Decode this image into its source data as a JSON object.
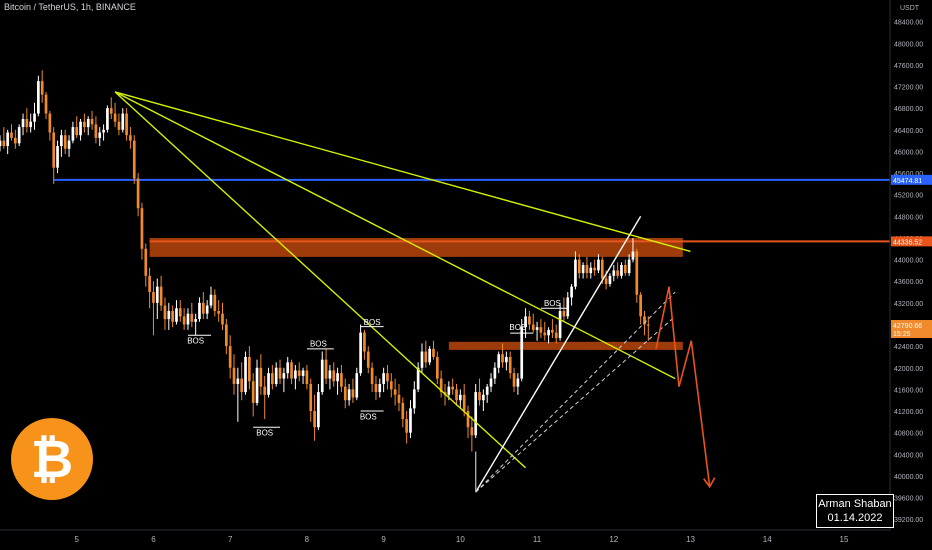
{
  "title": "Bitcoin / TetherUS, 1h, BINANCE",
  "author": {
    "name": "Arman Shaban",
    "date": "01.14.2022"
  },
  "colors": {
    "background": "#000000",
    "up": "#ffffff",
    "down": "#f08a2c",
    "trendline": "#d4f000",
    "zone": "#b8460c",
    "hline_blue": "#2962ff",
    "hline_red": "#e8541b",
    "projection": "#e8541b",
    "axis_text": "#b2b5be"
  },
  "chart_data": {
    "type": "candlestick",
    "symbol": "BTCUSDT",
    "timeframe": "1h",
    "exchange": "BINANCE",
    "y_axis": {
      "unit": "USDT",
      "ticks": [
        39200,
        39600,
        40000,
        40400,
        40800,
        41200,
        41600,
        42000,
        42400,
        42800,
        43200,
        43600,
        44000,
        44400,
        44800,
        45200,
        45600,
        46000,
        46400,
        46800,
        47200,
        47600,
        48000,
        48400
      ],
      "range": [
        39000,
        48800
      ]
    },
    "x_axis": {
      "ticks": [
        "5",
        "6",
        "7",
        "8",
        "9",
        "10",
        "11",
        "12",
        "13",
        "14",
        "15"
      ],
      "range": [
        4.0,
        15.6
      ]
    },
    "price_labels": [
      {
        "value": "45474.81",
        "price": 45474.81,
        "color": "#2962ff"
      },
      {
        "value": "44336.52",
        "price": 44336.52,
        "color": "#e8541b"
      },
      {
        "value": "42790.66",
        "price": 42790.66,
        "color": "#f08a2c",
        "countdown": "15:25"
      }
    ],
    "candles": [
      [
        4.0,
        46100,
        46300,
        46000,
        46200
      ],
      [
        4.05,
        46200,
        46450,
        46050,
        46100
      ],
      [
        4.1,
        46100,
        46400,
        45950,
        46350
      ],
      [
        4.15,
        46350,
        46500,
        46200,
        46250
      ],
      [
        4.2,
        46250,
        46400,
        46050,
        46150
      ],
      [
        4.25,
        46150,
        46500,
        46100,
        46450
      ],
      [
        4.3,
        46450,
        46700,
        46300,
        46600
      ],
      [
        4.35,
        46600,
        46800,
        46350,
        46450
      ],
      [
        4.4,
        46450,
        46700,
        46350,
        46550
      ],
      [
        4.45,
        46550,
        46900,
        46400,
        46700
      ],
      [
        4.5,
        46700,
        47400,
        46650,
        47300
      ],
      [
        4.55,
        47300,
        47500,
        46900,
        47050
      ],
      [
        4.6,
        47050,
        47100,
        46600,
        46700
      ],
      [
        4.65,
        46700,
        46750,
        46200,
        46350
      ],
      [
        4.7,
        46350,
        46450,
        45400,
        45700
      ],
      [
        4.75,
        45700,
        46200,
        45600,
        46100
      ],
      [
        4.8,
        46100,
        46400,
        45900,
        46300
      ],
      [
        4.85,
        46300,
        46400,
        45950,
        46050
      ],
      [
        4.9,
        46050,
        46300,
        45900,
        46200
      ],
      [
        4.95,
        46200,
        46550,
        46150,
        46450
      ],
      [
        5.0,
        46450,
        46650,
        46250,
        46300
      ],
      [
        5.05,
        46300,
        46600,
        46200,
        46550
      ],
      [
        5.1,
        46550,
        46700,
        46350,
        46450
      ],
      [
        5.15,
        46450,
        46650,
        46300,
        46600
      ],
      [
        5.2,
        46600,
        46750,
        46400,
        46500
      ],
      [
        5.25,
        46500,
        46650,
        46150,
        46250
      ],
      [
        5.3,
        46250,
        46450,
        46100,
        46350
      ],
      [
        5.35,
        46350,
        46500,
        46200,
        46400
      ],
      [
        5.4,
        46400,
        46850,
        46350,
        46800
      ],
      [
        5.45,
        46800,
        47000,
        46600,
        46700
      ],
      [
        5.5,
        46700,
        46900,
        46450,
        46550
      ],
      [
        5.55,
        46550,
        46700,
        46300,
        46400
      ],
      [
        5.6,
        46400,
        46800,
        46350,
        46700
      ],
      [
        5.65,
        46700,
        46800,
        46200,
        46300
      ],
      [
        5.7,
        46300,
        46450,
        46050,
        46200
      ],
      [
        5.75,
        46200,
        46300,
        45400,
        45500
      ],
      [
        5.8,
        45500,
        45600,
        44800,
        44950
      ],
      [
        5.85,
        44950,
        45050,
        44000,
        44200
      ],
      [
        5.9,
        44200,
        44300,
        43500,
        43700
      ],
      [
        5.95,
        43700,
        43850,
        43100,
        43400
      ],
      [
        6.0,
        43400,
        43600,
        42600,
        43200
      ],
      [
        6.05,
        43200,
        43650,
        42900,
        43500
      ],
      [
        6.1,
        43500,
        43700,
        43050,
        43150
      ],
      [
        6.15,
        43150,
        43300,
        42700,
        42900
      ],
      [
        6.2,
        42900,
        43200,
        42700,
        43050
      ],
      [
        6.25,
        43050,
        43150,
        42750,
        42850
      ],
      [
        6.3,
        42850,
        43250,
        42800,
        43100
      ],
      [
        6.35,
        43100,
        43250,
        42850,
        42950
      ],
      [
        6.4,
        42950,
        43100,
        42700,
        42800
      ],
      [
        6.45,
        42800,
        43100,
        42700,
        43000
      ],
      [
        6.5,
        43000,
        43200,
        42750,
        42850
      ],
      [
        6.55,
        42850,
        43000,
        42600,
        42900
      ],
      [
        6.6,
        42900,
        43300,
        42850,
        43200
      ],
      [
        6.65,
        43200,
        43400,
        42900,
        43000
      ],
      [
        6.7,
        43000,
        43250,
        42900,
        43150
      ],
      [
        6.75,
        43150,
        43500,
        43100,
        43350
      ],
      [
        6.8,
        43350,
        43450,
        42950,
        43050
      ],
      [
        6.85,
        43050,
        43250,
        42850,
        43000
      ],
      [
        6.9,
        43000,
        43200,
        42700,
        42800
      ],
      [
        6.95,
        42800,
        42900,
        42250,
        42400
      ],
      [
        7.0,
        42400,
        42600,
        41800,
        42000
      ],
      [
        7.05,
        42000,
        42250,
        41500,
        41700
      ],
      [
        7.1,
        41700,
        42000,
        41000,
        41800
      ],
      [
        7.15,
        41800,
        42100,
        41400,
        41550
      ],
      [
        7.2,
        41550,
        42300,
        41500,
        42200
      ],
      [
        7.25,
        42200,
        42400,
        41600,
        41750
      ],
      [
        7.3,
        41750,
        41900,
        41100,
        41350
      ],
      [
        7.35,
        41350,
        42150,
        41300,
        42000
      ],
      [
        7.4,
        42000,
        42250,
        41500,
        41650
      ],
      [
        7.45,
        41650,
        41850,
        41050,
        41500
      ],
      [
        7.5,
        41500,
        42000,
        41450,
        41900
      ],
      [
        7.55,
        41900,
        42050,
        41600,
        41700
      ],
      [
        7.6,
        41700,
        42100,
        41650,
        42000
      ],
      [
        7.65,
        42000,
        42150,
        41700,
        41800
      ],
      [
        7.7,
        41800,
        42000,
        41550,
        41900
      ],
      [
        7.75,
        41900,
        42200,
        41800,
        42100
      ],
      [
        7.8,
        42100,
        42150,
        41700,
        41800
      ],
      [
        7.85,
        41800,
        42050,
        41600,
        41950
      ],
      [
        7.9,
        41950,
        42100,
        41750,
        41850
      ],
      [
        7.95,
        41850,
        42000,
        41700,
        41950
      ],
      [
        8.0,
        41950,
        42050,
        41600,
        41700
      ],
      [
        8.05,
        41700,
        41800,
        41000,
        41200
      ],
      [
        8.1,
        41200,
        41500,
        40650,
        40900
      ],
      [
        8.15,
        40900,
        41700,
        40850,
        41550
      ],
      [
        8.2,
        41550,
        42300,
        41500,
        42150
      ],
      [
        8.25,
        42150,
        42350,
        41700,
        41800
      ],
      [
        8.3,
        41800,
        42050,
        41600,
        41950
      ],
      [
        8.35,
        41950,
        42100,
        41650,
        41750
      ],
      [
        8.4,
        41750,
        42000,
        41500,
        41900
      ],
      [
        8.45,
        41900,
        42050,
        41550,
        41650
      ],
      [
        8.5,
        41650,
        41800,
        41250,
        41400
      ],
      [
        8.55,
        41400,
        41700,
        41300,
        41600
      ],
      [
        8.6,
        41600,
        41800,
        41350,
        41450
      ],
      [
        8.65,
        41450,
        42000,
        41400,
        41900
      ],
      [
        8.7,
        41900,
        42800,
        41850,
        42650
      ],
      [
        8.75,
        42650,
        42700,
        42150,
        42300
      ],
      [
        8.8,
        42300,
        42400,
        41900,
        42000
      ],
      [
        8.85,
        42000,
        42100,
        41550,
        41700
      ],
      [
        8.9,
        41700,
        41850,
        41400,
        41550
      ],
      [
        8.95,
        41550,
        41800,
        41450,
        41700
      ],
      [
        9.0,
        41700,
        42000,
        41550,
        41900
      ],
      [
        9.05,
        41900,
        42050,
        41600,
        41750
      ],
      [
        9.1,
        41750,
        41900,
        41450,
        41600
      ],
      [
        9.15,
        41600,
        41800,
        41300,
        41500
      ],
      [
        9.2,
        41500,
        41700,
        41200,
        41350
      ],
      [
        9.25,
        41350,
        41450,
        40900,
        41050
      ],
      [
        9.3,
        41050,
        41200,
        40600,
        40800
      ],
      [
        9.35,
        40800,
        41400,
        40700,
        41250
      ],
      [
        9.4,
        41250,
        41750,
        41150,
        41600
      ],
      [
        9.45,
        41600,
        42100,
        41550,
        42000
      ],
      [
        9.5,
        42000,
        42450,
        41900,
        42300
      ],
      [
        9.55,
        42300,
        42500,
        42000,
        42100
      ],
      [
        9.6,
        42100,
        42400,
        42050,
        42350
      ],
      [
        9.65,
        42350,
        42500,
        42150,
        42200
      ],
      [
        9.7,
        42200,
        42300,
        41700,
        41800
      ],
      [
        9.75,
        41800,
        41950,
        41450,
        41550
      ],
      [
        9.8,
        41550,
        41700,
        41300,
        41500
      ],
      [
        9.85,
        41500,
        41750,
        41400,
        41650
      ],
      [
        9.9,
        41650,
        41800,
        41500,
        41600
      ],
      [
        9.95,
        41600,
        41700,
        41300,
        41400
      ],
      [
        10.0,
        41400,
        41600,
        41250,
        41500
      ],
      [
        10.05,
        41500,
        41700,
        41100,
        41200
      ],
      [
        10.1,
        41200,
        41300,
        40700,
        40900
      ],
      [
        10.15,
        40900,
        41100,
        40450,
        40750
      ],
      [
        10.2,
        40750,
        41700,
        40700,
        41550
      ],
      [
        10.25,
        41550,
        41800,
        41300,
        41400
      ],
      [
        10.3,
        41400,
        41600,
        41200,
        41500
      ],
      [
        10.35,
        41500,
        41700,
        41350,
        41650
      ],
      [
        10.4,
        41650,
        41900,
        41550,
        41800
      ],
      [
        10.45,
        41800,
        42100,
        41700,
        42000
      ],
      [
        10.5,
        42000,
        42300,
        41900,
        42250
      ],
      [
        10.55,
        42250,
        42450,
        42000,
        42100
      ],
      [
        10.6,
        42100,
        42300,
        41950,
        42200
      ],
      [
        10.65,
        42200,
        42300,
        41800,
        41900
      ],
      [
        10.7,
        41900,
        42000,
        41550,
        41650
      ],
      [
        10.75,
        41650,
        41900,
        41500,
        41800
      ],
      [
        10.8,
        41800,
        42900,
        41750,
        42750
      ],
      [
        10.85,
        42750,
        43100,
        42550,
        42950
      ],
      [
        10.9,
        42950,
        43050,
        42700,
        42800
      ],
      [
        10.95,
        42800,
        43000,
        42650,
        42700
      ],
      [
        11.0,
        42700,
        42850,
        42500,
        42750
      ],
      [
        11.05,
        42750,
        42900,
        42550,
        42650
      ],
      [
        11.1,
        42650,
        42850,
        42500,
        42600
      ],
      [
        11.15,
        42600,
        42750,
        42450,
        42700
      ],
      [
        11.2,
        42700,
        42900,
        42550,
        42650
      ],
      [
        11.25,
        42650,
        42800,
        42450,
        42550
      ],
      [
        11.3,
        42550,
        43200,
        42500,
        43050
      ],
      [
        11.35,
        43050,
        43300,
        42850,
        42950
      ],
      [
        11.4,
        42950,
        43400,
        42900,
        43300
      ],
      [
        11.45,
        43300,
        43550,
        43150,
        43500
      ],
      [
        11.5,
        43500,
        44150,
        43450,
        44000
      ],
      [
        11.55,
        44000,
        44100,
        43650,
        43750
      ],
      [
        11.6,
        43750,
        43950,
        43650,
        43900
      ],
      [
        11.65,
        43900,
        44050,
        43650,
        43750
      ],
      [
        11.7,
        43750,
        43950,
        43650,
        43850
      ],
      [
        11.75,
        43850,
        44000,
        43700,
        43800
      ],
      [
        11.8,
        43800,
        44100,
        43750,
        44000
      ],
      [
        11.85,
        44000,
        44050,
        43550,
        43650
      ],
      [
        11.9,
        43650,
        43800,
        43450,
        43550
      ],
      [
        11.95,
        43550,
        43750,
        43500,
        43700
      ],
      [
        12.0,
        43700,
        43900,
        43600,
        43800
      ],
      [
        12.05,
        43800,
        43950,
        43650,
        43700
      ],
      [
        12.1,
        43700,
        43950,
        43650,
        43900
      ],
      [
        12.15,
        43900,
        44000,
        43700,
        43750
      ],
      [
        12.2,
        43750,
        44100,
        43700,
        44000
      ],
      [
        12.25,
        44000,
        44400,
        43950,
        44150
      ],
      [
        12.3,
        44150,
        44200,
        43200,
        43350
      ],
      [
        12.35,
        43350,
        43400,
        42800,
        42950
      ],
      [
        12.4,
        42950,
        43050,
        42600,
        42800
      ],
      [
        12.45,
        42800,
        42950,
        42500,
        42790
      ]
    ],
    "horizontal_lines": [
      {
        "price": 45474.81,
        "color": "#2962ff",
        "from_x": 4.7
      },
      {
        "price": 44336.52,
        "color": "#e8541b",
        "from_x": 5.95
      }
    ],
    "zones": [
      {
        "x1": 5.95,
        "x2": 12.9,
        "y1": 44050,
        "y2": 44400
      },
      {
        "x1": 9.85,
        "x2": 12.9,
        "y1": 42330,
        "y2": 42480
      }
    ],
    "trendlines": [
      {
        "x1": 5.5,
        "y1": 47100,
        "x2": 13.0,
        "y2": 44150,
        "style": "solid"
      },
      {
        "x1": 5.5,
        "y1": 47100,
        "x2": 12.8,
        "y2": 41800,
        "style": "solid"
      },
      {
        "x1": 5.5,
        "y1": 47100,
        "x2": 10.85,
        "y2": 40150,
        "style": "solid"
      },
      {
        "x1": 10.2,
        "y1": 39700,
        "x2": 12.35,
        "y2": 44800,
        "style": "solid",
        "color": "#ffffff"
      },
      {
        "x1": 10.2,
        "y1": 39700,
        "x2": 12.8,
        "y2": 43400,
        "style": "dashed",
        "color": "#d0d0d0"
      },
      {
        "x1": 10.2,
        "y1": 39700,
        "x2": 12.8,
        "y2": 42950,
        "style": "dashed",
        "color": "#d0d0d0"
      },
      {
        "x1": 10.2,
        "y1": 39700,
        "x2": 10.2,
        "y2": 40450,
        "style": "solid",
        "color": "#aaaaaa"
      }
    ],
    "projection_path": [
      [
        12.55,
        42350
      ],
      [
        12.72,
        43500
      ],
      [
        12.85,
        41650
      ],
      [
        13.01,
        42500
      ],
      [
        13.25,
        39800
      ]
    ],
    "annotations": [
      {
        "label": "BOS",
        "x": 6.55,
        "y": 42500,
        "line_x1": 6.45,
        "line_x2": 6.75,
        "line_y": 42600
      },
      {
        "label": "BOS",
        "x": 7.45,
        "y": 40800,
        "line_x1": 7.3,
        "line_x2": 7.65,
        "line_y": 40900
      },
      {
        "label": "BOS",
        "x": 8.15,
        "y": 42450,
        "line_x1": 8.0,
        "line_x2": 8.35,
        "line_y": 42350
      },
      {
        "label": "BOS",
        "x": 8.8,
        "y": 41100,
        "line_x1": 8.7,
        "line_x2": 9.0,
        "line_y": 41200
      },
      {
        "label": "BOS",
        "x": 8.85,
        "y": 42850,
        "line_x1": 8.7,
        "line_x2": 9.0,
        "line_y": 42760
      },
      {
        "label": "BOS",
        "x": 10.75,
        "y": 42750,
        "line_x1": 10.65,
        "line_x2": 10.95,
        "line_y": 42640
      },
      {
        "label": "BOS",
        "x": 11.2,
        "y": 43200,
        "line_x1": 11.05,
        "line_x2": 11.4,
        "line_y": 43100
      }
    ]
  }
}
